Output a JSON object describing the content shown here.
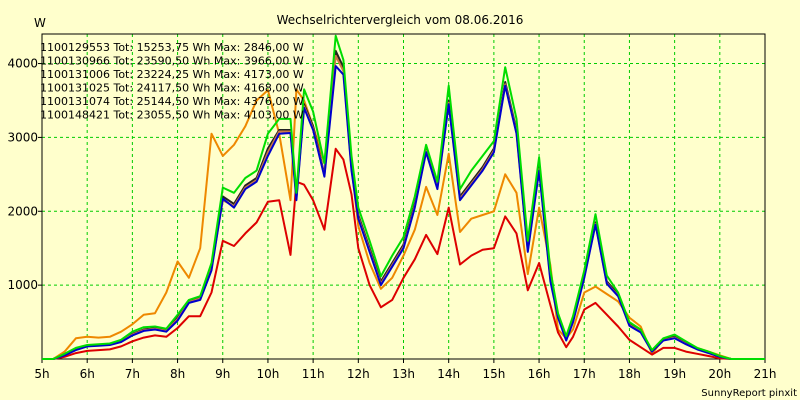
{
  "chart_data": {
    "type": "line",
    "title": "Wechselrichtervergleich vom 08.06.2016",
    "ylabel": "W",
    "xlabel": "",
    "xlim": [
      5,
      21
    ],
    "ylim": [
      0,
      4400
    ],
    "x_ticks": [
      5,
      6,
      7,
      8,
      9,
      10,
      11,
      12,
      13,
      14,
      15,
      16,
      17,
      18,
      19,
      20,
      21
    ],
    "x_tick_labels": [
      "5h",
      "6h",
      "7h",
      "8h",
      "9h",
      "10h",
      "11h",
      "12h",
      "13h",
      "14h",
      "15h",
      "16h",
      "17h",
      "18h",
      "19h",
      "20h",
      "21h"
    ],
    "y_ticks": [
      1000,
      2000,
      3000,
      4000
    ],
    "y_tick_labels": [
      "1000",
      "2000",
      "3000",
      "4000"
    ],
    "grid": true,
    "legend_position": "top-left",
    "footer": "SunnyReport pinxit",
    "x": [
      5,
      5.25,
      5.5,
      5.75,
      6,
      6.25,
      6.5,
      6.75,
      7,
      7.25,
      7.5,
      7.75,
      8,
      8.25,
      8.5,
      8.75,
      9,
      9.25,
      9.5,
      9.75,
      10,
      10.25,
      10.5,
      10.63,
      10.8,
      11,
      11.25,
      11.5,
      11.67,
      11.85,
      12,
      12.25,
      12.5,
      12.75,
      13,
      13.25,
      13.5,
      13.75,
      14,
      14.25,
      14.5,
      14.75,
      15,
      15.25,
      15.5,
      15.75,
      16,
      16.25,
      16.42,
      16.6,
      16.75,
      17,
      17.25,
      17.5,
      17.75,
      18,
      18.25,
      18.5,
      18.75,
      19,
      19.25,
      19.5,
      19.75,
      20,
      20.25,
      20.5,
      20.75,
      21
    ],
    "series": [
      {
        "name": "1100129553",
        "legend": "1100129553 Tot: 15253,75 Wh Max: 2846,00 W",
        "color": "#dd0000",
        "values": [
          0,
          0,
          30,
          80,
          110,
          120,
          130,
          170,
          240,
          290,
          320,
          300,
          420,
          580,
          580,
          900,
          1600,
          1530,
          1700,
          1850,
          2130,
          2150,
          1410,
          2400,
          2360,
          2150,
          1750,
          2846,
          2700,
          2230,
          1500,
          1000,
          700,
          800,
          1100,
          1350,
          1680,
          1420,
          2050,
          1280,
          1400,
          1480,
          1500,
          1930,
          1700,
          930,
          1300,
          730,
          360,
          160,
          300,
          670,
          760,
          600,
          440,
          260,
          160,
          60,
          150,
          150,
          100,
          70,
          40,
          10,
          0,
          0,
          0,
          0
        ]
      },
      {
        "name": "1100130966",
        "legend": "1100130966 Tot: 23590,50 Wh Max: 3966,00 W",
        "color": "#0000cc",
        "values": [
          0,
          0,
          50,
          120,
          170,
          180,
          190,
          230,
          320,
          380,
          400,
          370,
          520,
          760,
          800,
          1200,
          2170,
          2050,
          2300,
          2400,
          2750,
          3050,
          3060,
          2150,
          3400,
          3100,
          2470,
          3966,
          3850,
          2550,
          1900,
          1450,
          1000,
          1250,
          1500,
          2050,
          2800,
          2300,
          3450,
          2150,
          2350,
          2550,
          2800,
          3700,
          3050,
          1450,
          2550,
          1050,
          560,
          250,
          500,
          1100,
          1820,
          1020,
          850,
          450,
          360,
          100,
          250,
          280,
          200,
          130,
          80,
          30,
          0,
          0,
          0,
          0
        ]
      },
      {
        "name": "1100131006",
        "legend": "1100131006 Tot: 23224,25 Wh Max: 4173,00 W",
        "color": "#ee8800",
        "values": [
          0,
          0,
          100,
          280,
          300,
          290,
          300,
          370,
          470,
          600,
          620,
          900,
          1320,
          1100,
          1500,
          3050,
          2750,
          2900,
          3150,
          3500,
          3640,
          3050,
          2150,
          3650,
          3500,
          3150,
          2650,
          4173,
          3900,
          2600,
          1800,
          1300,
          950,
          1100,
          1400,
          1750,
          2330,
          1950,
          2780,
          1720,
          1900,
          1950,
          2000,
          2500,
          2250,
          1150,
          2050,
          1270,
          400,
          280,
          400,
          900,
          980,
          880,
          780,
          560,
          440,
          70,
          270,
          300,
          210,
          150,
          100,
          50,
          0,
          0,
          0,
          0
        ]
      },
      {
        "name": "1100131025",
        "legend": "1100131025 Tot: 24117,50 Wh Max: 4168,00 W",
        "color": "#222222",
        "values": [
          0,
          0,
          60,
          130,
          180,
          190,
          200,
          250,
          340,
          400,
          420,
          390,
          560,
          780,
          840,
          1250,
          2200,
          2100,
          2350,
          2450,
          2850,
          3100,
          3100,
          2200,
          3450,
          3150,
          2500,
          4168,
          3950,
          2600,
          1950,
          1500,
          1050,
          1300,
          1550,
          2100,
          2850,
          2350,
          3500,
          2200,
          2400,
          2600,
          2850,
          3750,
          3100,
          1500,
          2600,
          1100,
          600,
          280,
          520,
          1150,
          1850,
          1050,
          880,
          480,
          380,
          110,
          260,
          300,
          210,
          140,
          90,
          30,
          0,
          0,
          0,
          0
        ]
      },
      {
        "name": "1100131074",
        "legend": "1100131074 Tot: 25144,50 Wh Max: 4376,00 W",
        "color": "#00dd00",
        "values": [
          0,
          0,
          70,
          150,
          190,
          200,
          210,
          260,
          370,
          430,
          440,
          410,
          600,
          800,
          850,
          1300,
          2320,
          2250,
          2450,
          2550,
          3050,
          3250,
          3250,
          2250,
          3650,
          3350,
          2650,
          4376,
          4050,
          2750,
          2050,
          1600,
          1120,
          1400,
          1650,
          2200,
          2900,
          2400,
          3700,
          2300,
          2550,
          2750,
          2950,
          3950,
          3250,
          1600,
          2730,
          1200,
          620,
          310,
          580,
          1200,
          1960,
          1130,
          900,
          500,
          400,
          120,
          280,
          330,
          240,
          150,
          100,
          40,
          0,
          0,
          0,
          0
        ]
      },
      {
        "name": "1100148421",
        "legend": "1100148421 Tot: 23055,50 Wh Max: 4103,00 W",
        "color": "#cc7744",
        "values": [
          0,
          0,
          55,
          125,
          175,
          185,
          195,
          240,
          330,
          390,
          410,
          380,
          540,
          770,
          820,
          1230,
          2150,
          2070,
          2320,
          2420,
          2800,
          3080,
          3080,
          2180,
          3420,
          3120,
          2480,
          4103,
          3900,
          2580,
          1920,
          1470,
          1020,
          1270,
          1520,
          2070,
          2820,
          2320,
          3470,
          2170,
          2370,
          2570,
          2820,
          3720,
          3070,
          1470,
          2570,
          1080,
          580,
          270,
          510,
          1120,
          1830,
          1030,
          860,
          460,
          370,
          100,
          255,
          290,
          205,
          135,
          85,
          30,
          0,
          0,
          0,
          0
        ]
      }
    ]
  }
}
